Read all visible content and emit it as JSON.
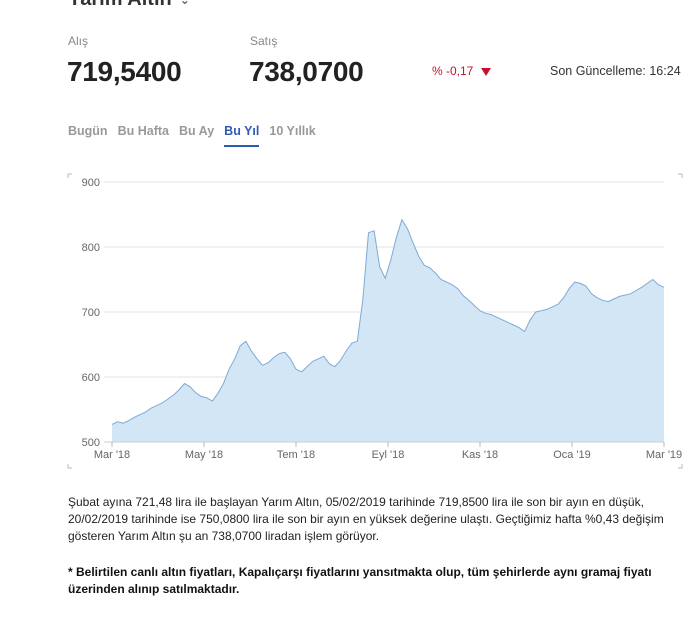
{
  "header": {
    "title": "Yarım Altın"
  },
  "prices": {
    "buy_label": "Alış",
    "buy_value": "719,5400",
    "sell_label": "Satış",
    "sell_value": "738,0700",
    "change": "% -0,17",
    "updated": "Son Güncelleme: 16:24"
  },
  "tabs": [
    {
      "label": "Bugün"
    },
    {
      "label": "Bu Hafta"
    },
    {
      "label": "Bu Ay"
    },
    {
      "label": "Bu Yıl"
    },
    {
      "label": "10 Yıllık"
    }
  ],
  "colors": {
    "accent": "#2c5bb4",
    "negative": "#c8102e",
    "area_fill": "#d3e6f6",
    "area_line": "#7fa9d6"
  },
  "chart_data": {
    "type": "area",
    "x_tick_labels": [
      "Mar '18",
      "May '18",
      "Tem '18",
      "Eyl '18",
      "Kas '18",
      "Oca '19",
      "Mar '19"
    ],
    "ylim": [
      500,
      900
    ],
    "y_ticks": [
      500,
      600,
      700,
      800,
      900
    ],
    "grid": true,
    "values": [
      527,
      531,
      529,
      533,
      538,
      542,
      546,
      552,
      556,
      560,
      566,
      572,
      580,
      590,
      585,
      576,
      570,
      568,
      563,
      575,
      590,
      612,
      628,
      648,
      655,
      640,
      628,
      618,
      622,
      630,
      636,
      638,
      628,
      612,
      608,
      616,
      624,
      628,
      632,
      620,
      616,
      626,
      640,
      652,
      655,
      720,
      822,
      825,
      770,
      752,
      780,
      815,
      842,
      828,
      806,
      786,
      772,
      768,
      760,
      750,
      746,
      742,
      736,
      725,
      718,
      710,
      702,
      698,
      696,
      692,
      688,
      684,
      680,
      676,
      670,
      688,
      700,
      702,
      704,
      708,
      712,
      722,
      736,
      746,
      744,
      740,
      728,
      722,
      718,
      716,
      720,
      724,
      726,
      728,
      733,
      738,
      744,
      750,
      742,
      738
    ]
  },
  "description": "Şubat ayına 721,48 lira ile başlayan Yarım Altın, 05/02/2019 tarihinde 719,8500 lira ile son bir ayın en düşük, 20/02/2019 tarihinde ise 750,0800 lira ile son bir ayın en yüksek değerine ulaştı. Geçtiğimiz hafta %0,43 değişim gösteren Yarım Altın şu an 738,0700 liradan işlem görüyor.",
  "note": "* Belirtilen canlı altın fiyatları, Kapalıçarşı fiyatlarını yansıtmakta olup, tüm şehirlerde aynı gramaj fiyatı üzerinden alınıp satılmaktadır."
}
